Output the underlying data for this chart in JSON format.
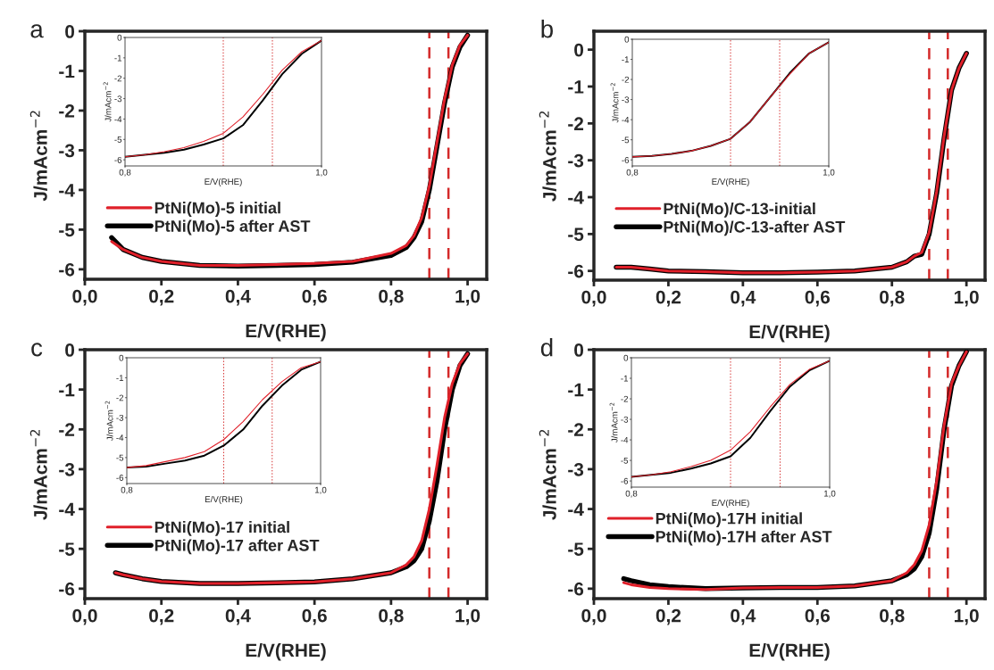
{
  "chart_data": [
    {
      "type": "line",
      "title": "a",
      "xlabel": "E/V(RHE)",
      "ylabel": "J/mAcm$^{−2}$",
      "xlim": [
        0,
        1.05
      ],
      "ylim": [
        -6.25,
        0
      ],
      "xticks": [
        {
          "value": 0,
          "label": "0,0"
        },
        {
          "value": 0.2,
          "label": "0,2"
        },
        {
          "value": 0.4,
          "label": "0,4"
        },
        {
          "value": 0.6,
          "label": "0,6"
        },
        {
          "value": 0.8,
          "label": "0,8"
        },
        {
          "value": 1.0,
          "label": "1,0"
        }
      ],
      "yticks": [
        -6,
        -5,
        -4,
        -3,
        -2,
        -1,
        0
      ],
      "legend": "bottom left",
      "line_style": "solid",
      "grid": false,
      "x": [
        0.07,
        0.1,
        0.15,
        0.2,
        0.3,
        0.4,
        0.5,
        0.6,
        0.7,
        0.8,
        0.84,
        0.86,
        0.88,
        0.9,
        0.92,
        0.94,
        0.96,
        0.98,
        1.0
      ],
      "series": [
        {
          "name": "PtNi(Mo)-5 initial",
          "color": "#e0202a",
          "values": [
            -5.3,
            -5.5,
            -5.7,
            -5.8,
            -5.9,
            -5.9,
            -5.88,
            -5.85,
            -5.8,
            -5.6,
            -5.4,
            -5.15,
            -4.7,
            -3.9,
            -2.8,
            -1.7,
            -0.85,
            -0.35,
            -0.1
          ]
        },
        {
          "name": "PtNi(Mo)-5 after AST",
          "color": "#000000",
          "values": [
            -5.2,
            -5.5,
            -5.7,
            -5.8,
            -5.9,
            -5.92,
            -5.9,
            -5.88,
            -5.82,
            -5.65,
            -5.45,
            -5.2,
            -4.8,
            -4.0,
            -2.9,
            -1.8,
            -0.9,
            -0.4,
            -0.1
          ]
        }
      ],
      "ref_lines": [
        {
          "axis": "x",
          "value": 0.9,
          "color": "#d42a2a",
          "line_style": "dashed"
        },
        {
          "axis": "x",
          "value": 0.95,
          "color": "#d42a2a",
          "line_style": "dashed"
        }
      ]
    },
    {
      "type": "line",
      "xlabel": "E/V(RHE)",
      "ylabel": "J/mAcm$^{−2}$",
      "xlim": [
        0.8,
        1.0
      ],
      "ylim": [
        -6.3,
        0
      ],
      "xticks": [
        {
          "value": 0.8,
          "label": "0,8"
        },
        {
          "value": 1.0,
          "label": "1,0"
        }
      ],
      "yticks": [
        -6,
        -5,
        -4,
        -3,
        -2,
        -1,
        0
      ],
      "line_style": "solid",
      "grid": false,
      "x": [
        0.8,
        0.82,
        0.84,
        0.86,
        0.88,
        0.9,
        0.92,
        0.94,
        0.96,
        0.98,
        1.0
      ],
      "series": [
        {
          "color": "#e0202a",
          "values": [
            -5.85,
            -5.75,
            -5.6,
            -5.4,
            -5.1,
            -4.7,
            -3.9,
            -2.8,
            -1.6,
            -0.7,
            -0.15
          ]
        },
        {
          "color": "#000000",
          "values": [
            -5.85,
            -5.75,
            -5.65,
            -5.5,
            -5.25,
            -4.95,
            -4.3,
            -3.1,
            -1.8,
            -0.8,
            -0.15
          ]
        }
      ],
      "ref_lines": [
        {
          "axis": "x",
          "value": 0.9,
          "color": "#d42a2a",
          "line_style": "dotted"
        },
        {
          "axis": "x",
          "value": 0.95,
          "color": "#d42a2a",
          "line_style": "dotted"
        }
      ]
    },
    {
      "type": "line",
      "title": "b",
      "xlabel": "E/V(RHE)",
      "ylabel": "J/mAcm$^{−2}$",
      "xlim": [
        0,
        1.05
      ],
      "ylim": [
        -6.25,
        0.5
      ],
      "xticks": [
        {
          "value": 0,
          "label": "0,0"
        },
        {
          "value": 0.2,
          "label": "0,2"
        },
        {
          "value": 0.4,
          "label": "0,4"
        },
        {
          "value": 0.6,
          "label": "0,6"
        },
        {
          "value": 0.8,
          "label": "0,8"
        },
        {
          "value": 1.0,
          "label": "1,0"
        }
      ],
      "yticks": [
        -6,
        -5,
        -4,
        -3,
        -2,
        -1,
        0
      ],
      "legend": "bottom left",
      "line_style": "solid",
      "grid": false,
      "x": [
        0.06,
        0.1,
        0.15,
        0.2,
        0.3,
        0.4,
        0.5,
        0.6,
        0.7,
        0.8,
        0.84,
        0.86,
        0.88,
        0.9,
        0.92,
        0.94,
        0.96,
        0.98,
        1.0
      ],
      "series": [
        {
          "name": "PtNi(Mo)/C-13-initial",
          "color": "#e0202a",
          "values": [
            -5.9,
            -5.9,
            -5.95,
            -6.0,
            -6.02,
            -6.05,
            -6.05,
            -6.03,
            -6.0,
            -5.9,
            -5.75,
            -5.6,
            -5.5,
            -4.95,
            -3.85,
            -2.35,
            -1.1,
            -0.5,
            -0.1
          ]
        },
        {
          "name": "PtNi(Mo)/C-13-after AST",
          "color": "#000000",
          "values": [
            -5.9,
            -5.9,
            -5.95,
            -6.0,
            -6.02,
            -6.05,
            -6.05,
            -6.03,
            -6.0,
            -5.9,
            -5.75,
            -5.6,
            -5.55,
            -5.0,
            -3.9,
            -2.4,
            -1.1,
            -0.5,
            -0.1
          ]
        }
      ],
      "ref_lines": [
        {
          "axis": "x",
          "value": 0.9,
          "color": "#d42a2a",
          "line_style": "dashed"
        },
        {
          "axis": "x",
          "value": 0.95,
          "color": "#d42a2a",
          "line_style": "dashed"
        }
      ]
    },
    {
      "type": "line",
      "xlabel": "E/V(RHE)",
      "ylabel": "J/mAcm$^{−2}$",
      "xlim": [
        0.8,
        1.0
      ],
      "ylim": [
        -6.3,
        0
      ],
      "xticks": [
        {
          "value": 0.8,
          "label": "0,8"
        },
        {
          "value": 1.0,
          "label": "1,0"
        }
      ],
      "yticks": [
        -6,
        -5,
        -4,
        -3,
        -2,
        -1,
        0
      ],
      "line_style": "solid",
      "grid": false,
      "x": [
        0.8,
        0.82,
        0.84,
        0.86,
        0.88,
        0.9,
        0.92,
        0.94,
        0.96,
        0.98,
        1.0
      ],
      "series": [
        {
          "color": "#e0202a",
          "values": [
            -5.85,
            -5.8,
            -5.7,
            -5.55,
            -5.3,
            -4.95,
            -4.1,
            -2.9,
            -1.75,
            -0.7,
            -0.15
          ]
        },
        {
          "color": "#000000",
          "values": [
            -5.85,
            -5.8,
            -5.7,
            -5.55,
            -5.3,
            -4.95,
            -4.1,
            -2.9,
            -1.7,
            -0.7,
            -0.15
          ]
        }
      ],
      "ref_lines": [
        {
          "axis": "x",
          "value": 0.9,
          "color": "#d42a2a",
          "line_style": "dotted"
        },
        {
          "axis": "x",
          "value": 0.95,
          "color": "#d42a2a",
          "line_style": "dotted"
        }
      ]
    },
    {
      "type": "line",
      "title": "c",
      "xlabel": "E/V(RHE)",
      "ylabel": "J/mAcm$^{−2}$",
      "xlim": [
        0,
        1.05
      ],
      "ylim": [
        -6.25,
        0
      ],
      "xticks": [
        {
          "value": 0,
          "label": "0,0"
        },
        {
          "value": 0.2,
          "label": "0,2"
        },
        {
          "value": 0.4,
          "label": "0,4"
        },
        {
          "value": 0.6,
          "label": "0,6"
        },
        {
          "value": 0.8,
          "label": "0,8"
        },
        {
          "value": 1.0,
          "label": "1,0"
        }
      ],
      "yticks": [
        -6,
        -5,
        -4,
        -3,
        -2,
        -1,
        0
      ],
      "legend": "bottom left",
      "line_style": "solid",
      "grid": false,
      "x": [
        0.08,
        0.1,
        0.15,
        0.2,
        0.3,
        0.4,
        0.5,
        0.6,
        0.7,
        0.8,
        0.84,
        0.86,
        0.88,
        0.9,
        0.92,
        0.94,
        0.96,
        0.98,
        1.0
      ],
      "series": [
        {
          "name": "PtNi(Mo)-17 initial",
          "color": "#e0202a",
          "values": [
            -5.6,
            -5.65,
            -5.75,
            -5.82,
            -5.87,
            -5.87,
            -5.85,
            -5.83,
            -5.75,
            -5.6,
            -5.4,
            -5.2,
            -4.8,
            -4.0,
            -2.9,
            -1.7,
            -0.85,
            -0.35,
            -0.1
          ]
        },
        {
          "name": "PtNi(Mo)-17 after AST",
          "color": "#000000",
          "values": [
            -5.6,
            -5.65,
            -5.75,
            -5.82,
            -5.87,
            -5.87,
            -5.85,
            -5.83,
            -5.75,
            -5.6,
            -5.45,
            -5.3,
            -5.0,
            -4.3,
            -3.3,
            -2.0,
            -1.0,
            -0.4,
            -0.1
          ]
        }
      ],
      "ref_lines": [
        {
          "axis": "x",
          "value": 0.9,
          "color": "#d42a2a",
          "line_style": "dashed"
        },
        {
          "axis": "x",
          "value": 0.95,
          "color": "#d42a2a",
          "line_style": "dashed"
        }
      ]
    },
    {
      "type": "line",
      "xlabel": "E/V(RHE)",
      "ylabel": "J/mAcm$^{−2}$",
      "xlim": [
        0.8,
        1.0
      ],
      "ylim": [
        -6.3,
        0
      ],
      "xticks": [
        {
          "value": 0.8,
          "label": "0,8"
        },
        {
          "value": 1.0,
          "label": "1,0"
        }
      ],
      "yticks": [
        -6,
        -5,
        -4,
        -3,
        -2,
        -1,
        0
      ],
      "line_style": "solid",
      "grid": false,
      "x": [
        0.8,
        0.82,
        0.84,
        0.86,
        0.88,
        0.9,
        0.92,
        0.94,
        0.96,
        0.98,
        1.0
      ],
      "series": [
        {
          "color": "#e0202a",
          "values": [
            -5.5,
            -5.4,
            -5.2,
            -5.0,
            -4.7,
            -4.1,
            -3.2,
            -2.1,
            -1.2,
            -0.5,
            -0.2
          ]
        },
        {
          "color": "#000000",
          "values": [
            -5.5,
            -5.45,
            -5.3,
            -5.15,
            -4.9,
            -4.4,
            -3.6,
            -2.4,
            -1.4,
            -0.6,
            -0.2
          ]
        }
      ],
      "ref_lines": [
        {
          "axis": "x",
          "value": 0.9,
          "color": "#d42a2a",
          "line_style": "dotted"
        },
        {
          "axis": "x",
          "value": 0.95,
          "color": "#d42a2a",
          "line_style": "dotted"
        }
      ]
    },
    {
      "type": "line",
      "title": "d",
      "xlabel": "E/V(RHE)",
      "ylabel": "J/mAcm$^{−2}$",
      "xlim": [
        0,
        1.05
      ],
      "ylim": [
        -6.25,
        0
      ],
      "xticks": [
        {
          "value": 0,
          "label": "0,0"
        },
        {
          "value": 0.2,
          "label": "0,2"
        },
        {
          "value": 0.4,
          "label": "0,4"
        },
        {
          "value": 0.6,
          "label": "0,6"
        },
        {
          "value": 0.8,
          "label": "0,8"
        },
        {
          "value": 1.0,
          "label": "1,0"
        }
      ],
      "yticks": [
        -6,
        -5,
        -4,
        -3,
        -2,
        -1,
        0
      ],
      "legend": "left",
      "line_style": "solid",
      "grid": false,
      "x": [
        0.08,
        0.1,
        0.15,
        0.2,
        0.3,
        0.4,
        0.5,
        0.6,
        0.7,
        0.8,
        0.84,
        0.86,
        0.88,
        0.9,
        0.92,
        0.94,
        0.96,
        0.98,
        1.0
      ],
      "series": [
        {
          "name": "PtNi(Mo)-17H initial",
          "color": "#e0202a",
          "values": [
            -5.85,
            -5.9,
            -5.97,
            -6.0,
            -6.02,
            -5.98,
            -5.97,
            -5.97,
            -5.93,
            -5.8,
            -5.6,
            -5.4,
            -5.05,
            -4.4,
            -3.3,
            -1.9,
            -0.85,
            -0.4,
            -0.05
          ]
        },
        {
          "name": "PtNi(Mo)-17H after AST",
          "color": "#000000",
          "values": [
            -5.75,
            -5.8,
            -5.9,
            -5.95,
            -6.0,
            -5.98,
            -5.97,
            -5.97,
            -5.93,
            -5.8,
            -5.65,
            -5.5,
            -5.2,
            -4.6,
            -3.5,
            -2.0,
            -0.9,
            -0.4,
            -0.05
          ]
        }
      ],
      "ref_lines": [
        {
          "axis": "x",
          "value": 0.9,
          "color": "#d42a2a",
          "line_style": "dashed"
        },
        {
          "axis": "x",
          "value": 0.95,
          "color": "#d42a2a",
          "line_style": "dashed"
        }
      ]
    },
    {
      "type": "line",
      "xlabel": "E/V(RHE)",
      "ylabel": "J/mAcm$^{−2}$",
      "xlim": [
        0.8,
        1.0
      ],
      "ylim": [
        -6.3,
        0
      ],
      "xticks": [
        {
          "value": 0.8,
          "label": "0,8"
        },
        {
          "value": 1.0,
          "label": "1,0"
        }
      ],
      "yticks": [
        -6,
        -5,
        -4,
        -3,
        -2,
        -1,
        0
      ],
      "line_style": "solid",
      "grid": false,
      "x": [
        0.8,
        0.82,
        0.84,
        0.86,
        0.88,
        0.9,
        0.92,
        0.94,
        0.96,
        0.98,
        1.0
      ],
      "series": [
        {
          "color": "#e0202a",
          "values": [
            -5.8,
            -5.7,
            -5.55,
            -5.3,
            -5.0,
            -4.5,
            -3.6,
            -2.4,
            -1.3,
            -0.55,
            -0.15
          ]
        },
        {
          "color": "#000000",
          "values": [
            -5.8,
            -5.7,
            -5.6,
            -5.4,
            -5.15,
            -4.8,
            -3.9,
            -2.6,
            -1.4,
            -0.6,
            -0.15
          ]
        }
      ],
      "ref_lines": [
        {
          "axis": "x",
          "value": 0.9,
          "color": "#d42a2a",
          "line_style": "dotted"
        },
        {
          "axis": "x",
          "value": 0.95,
          "color": "#d42a2a",
          "line_style": "dotted"
        }
      ]
    }
  ]
}
